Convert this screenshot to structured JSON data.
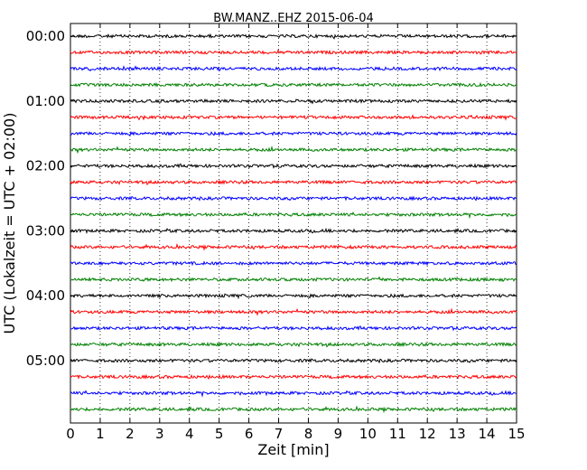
{
  "chart_data": {
    "type": "line",
    "title": "BW.MANZ..EHZ 2015-06-04",
    "xlabel": "Zeit  [min]",
    "ylabel": "UTC (Lokalzeit = UTC + 02:00)",
    "xlim": [
      0,
      15
    ],
    "xticks": [
      "0",
      "1",
      "2",
      "3",
      "4",
      "5",
      "6",
      "7",
      "8",
      "9",
      "10",
      "11",
      "12",
      "13",
      "14",
      "15"
    ],
    "y_hour_labels": [
      "00:00",
      "01:00",
      "02:00",
      "03:00",
      "04:00",
      "05:00"
    ],
    "grid": "vertical dotted lines at each minute",
    "trace_interval_min": 15,
    "trace_count": 24,
    "series_colors": [
      "#000000",
      "#ff0000",
      "#0000ff",
      "#008000"
    ],
    "trace_start_times": [
      "00:00",
      "00:15",
      "00:30",
      "00:45",
      "01:00",
      "01:15",
      "01:30",
      "01:45",
      "02:00",
      "02:15",
      "02:30",
      "02:45",
      "03:00",
      "03:15",
      "03:30",
      "03:45",
      "04:00",
      "04:15",
      "04:30",
      "04:45",
      "05:00",
      "05:15",
      "05:30",
      "05:45"
    ]
  }
}
